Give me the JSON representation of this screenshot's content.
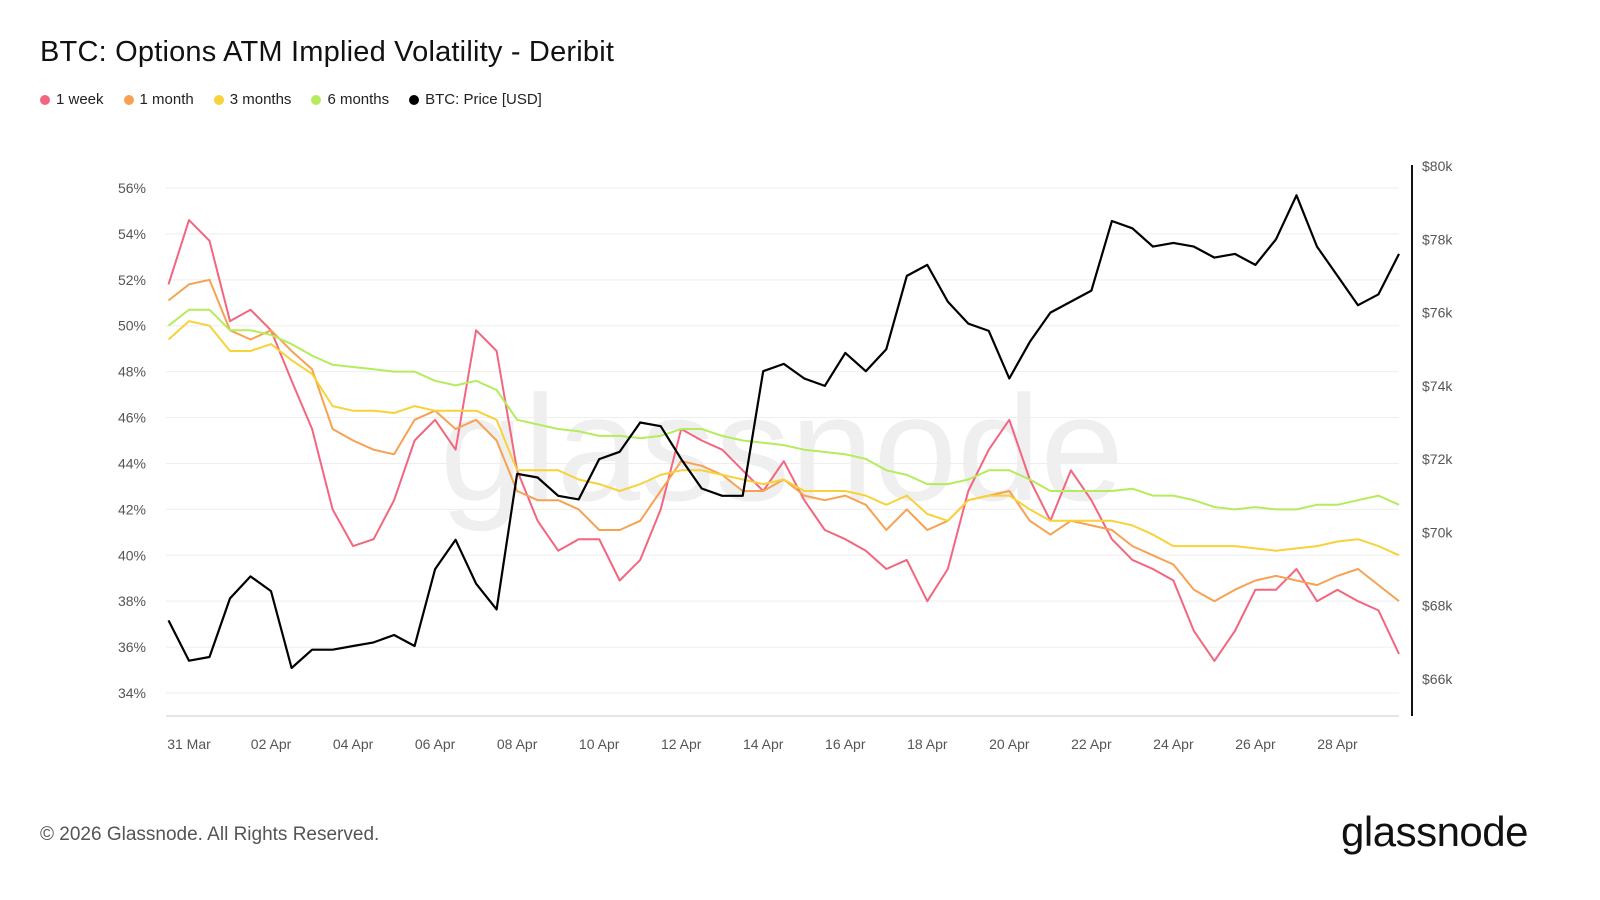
{
  "chart_data": {
    "type": "line",
    "title": "BTC: Options ATM Implied Volatility - Deribit",
    "legend_placement": "top-left",
    "grid": true,
    "x_tick_labels": [
      "31 Mar",
      "02 Apr",
      "04 Apr",
      "06 Apr",
      "08 Apr",
      "10 Apr",
      "12 Apr",
      "14 Apr",
      "16 Apr",
      "18 Apr",
      "20 Apr",
      "22 Apr",
      "24 Apr",
      "26 Apr",
      "28 Apr"
    ],
    "x_tick_dates": [
      "2026-03-31",
      "2026-04-02",
      "2026-04-04",
      "2026-04-06",
      "2026-04-08",
      "2026-04-10",
      "2026-04-12",
      "2026-04-14",
      "2026-04-16",
      "2026-04-18",
      "2026-04-20",
      "2026-04-22",
      "2026-04-24",
      "2026-04-26",
      "2026-04-28"
    ],
    "x_start": "2026-03-30T12:00",
    "x_step_hours": 12,
    "xlim": [
      "2026-03-30T12:00",
      "2026-04-29T12:00"
    ],
    "y_left": {
      "ylim": [
        34,
        56
      ],
      "tick_labels": [
        "34%",
        "36%",
        "38%",
        "40%",
        "42%",
        "44%",
        "46%",
        "48%",
        "50%",
        "52%",
        "54%",
        "56%"
      ],
      "ticks": [
        34,
        36,
        38,
        40,
        42,
        44,
        46,
        48,
        50,
        52,
        54,
        56
      ]
    },
    "y_right": {
      "ylim": [
        66000,
        80000
      ],
      "tick_labels": [
        "$66k",
        "$68k",
        "$70k",
        "$72k",
        "$74k",
        "$76k",
        "$78k",
        "$80k"
      ],
      "ticks": [
        66000,
        68000,
        70000,
        72000,
        74000,
        76000,
        78000,
        80000
      ]
    },
    "series": [
      {
        "name": "1 week",
        "axis": "left",
        "color": "#f2667f",
        "values": [
          51.8,
          54.6,
          53.7,
          50.2,
          50.7,
          49.8,
          47.6,
          45.5,
          42.0,
          40.4,
          40.7,
          42.4,
          45.0,
          45.9,
          44.6,
          49.8,
          48.9,
          43.7,
          41.5,
          40.2,
          40.7,
          40.7,
          38.9,
          39.8,
          42.0,
          45.5,
          45.0,
          44.6,
          43.7,
          42.8,
          44.1,
          42.4,
          41.1,
          40.7,
          40.2,
          39.4,
          39.8,
          38.0,
          39.4,
          42.8,
          44.6,
          45.9,
          43.3,
          41.5,
          43.7,
          42.4,
          40.7,
          39.8,
          39.4,
          38.9,
          36.7,
          35.4,
          36.7,
          38.5,
          38.5,
          39.4,
          38.0,
          38.5,
          38.0,
          37.6,
          35.7
        ]
      },
      {
        "name": "1 month",
        "axis": "left",
        "color": "#f7a252",
        "values": [
          51.1,
          51.8,
          52.0,
          49.8,
          49.4,
          49.8,
          48.9,
          48.1,
          45.5,
          45.0,
          44.6,
          44.4,
          45.9,
          46.3,
          45.5,
          45.9,
          45.0,
          42.8,
          42.4,
          42.4,
          42.0,
          41.1,
          41.1,
          41.5,
          42.8,
          44.1,
          43.9,
          43.5,
          42.8,
          42.8,
          43.3,
          42.6,
          42.4,
          42.6,
          42.2,
          41.1,
          42.0,
          41.1,
          41.5,
          42.4,
          42.6,
          42.8,
          41.5,
          40.9,
          41.5,
          41.3,
          41.1,
          40.4,
          40.0,
          39.6,
          38.5,
          38.0,
          38.5,
          38.9,
          39.1,
          38.9,
          38.7,
          39.1,
          39.4,
          38.7,
          38.0
        ]
      },
      {
        "name": "3 months",
        "axis": "left",
        "color": "#f7d23a",
        "values": [
          49.4,
          50.2,
          50.0,
          48.9,
          48.9,
          49.2,
          48.5,
          47.9,
          46.5,
          46.3,
          46.3,
          46.2,
          46.5,
          46.3,
          46.3,
          46.3,
          45.9,
          43.7,
          43.7,
          43.7,
          43.3,
          43.1,
          42.8,
          43.1,
          43.5,
          43.7,
          43.7,
          43.5,
          43.3,
          43.1,
          43.3,
          42.8,
          42.8,
          42.8,
          42.6,
          42.2,
          42.6,
          41.8,
          41.5,
          42.4,
          42.6,
          42.6,
          42.0,
          41.5,
          41.5,
          41.5,
          41.5,
          41.3,
          40.9,
          40.4,
          40.4,
          40.4,
          40.4,
          40.3,
          40.2,
          40.3,
          40.4,
          40.6,
          40.7,
          40.4,
          40.0
        ]
      },
      {
        "name": "6 months",
        "axis": "left",
        "color": "#b5ec5c",
        "values": [
          50.0,
          50.7,
          50.7,
          49.8,
          49.8,
          49.6,
          49.2,
          48.7,
          48.3,
          48.2,
          48.1,
          48.0,
          48.0,
          47.6,
          47.4,
          47.6,
          47.2,
          45.9,
          45.7,
          45.5,
          45.4,
          45.2,
          45.2,
          45.1,
          45.2,
          45.5,
          45.5,
          45.2,
          45.0,
          44.9,
          44.8,
          44.6,
          44.5,
          44.4,
          44.2,
          43.7,
          43.5,
          43.1,
          43.1,
          43.3,
          43.7,
          43.7,
          43.3,
          42.8,
          42.8,
          42.8,
          42.8,
          42.9,
          42.6,
          42.6,
          42.4,
          42.1,
          42.0,
          42.1,
          42.0,
          42.0,
          42.2,
          42.2,
          42.4,
          42.6,
          42.2
        ]
      },
      {
        "name": "BTC: Price [USD]",
        "axis": "right",
        "color": "#000000",
        "values": [
          67600,
          66500,
          66600,
          68200,
          68800,
          68400,
          66300,
          66800,
          66800,
          66900,
          67000,
          67200,
          66900,
          69000,
          69800,
          68600,
          67900,
          71600,
          71500,
          71000,
          70900,
          72000,
          72200,
          73000,
          72900,
          72000,
          71200,
          71000,
          71000,
          74400,
          74600,
          74200,
          74000,
          74900,
          74400,
          75000,
          77000,
          77300,
          76300,
          75700,
          75500,
          74200,
          75200,
          76000,
          76300,
          76600,
          78500,
          78300,
          77800,
          77900,
          77800,
          77500,
          77600,
          77300,
          78000,
          79200,
          77800,
          77000,
          76200,
          76500,
          77600
        ]
      }
    ]
  },
  "watermark": "glassnode",
  "footer": {
    "copyright": "© 2026 Glassnode. All Rights Reserved.",
    "logo": "glassnode"
  }
}
